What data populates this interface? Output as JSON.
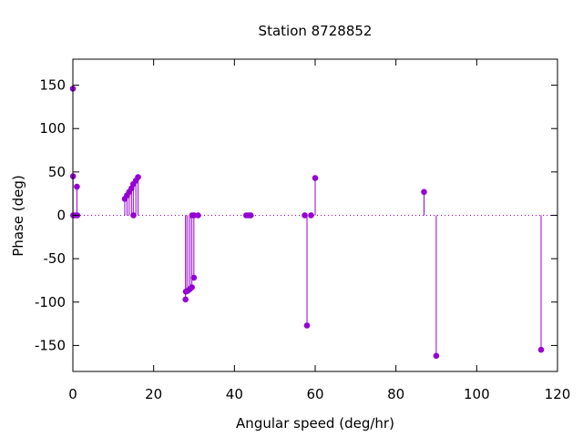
{
  "chart_data": {
    "type": "scatter",
    "style": "impulses",
    "title": "Station 8728852",
    "xlabel": "Angular speed (deg/hr)",
    "ylabel": "Phase (deg)",
    "xlim": [
      0,
      120
    ],
    "ylim": [
      -180,
      180
    ],
    "xticks": [
      0,
      20,
      40,
      60,
      80,
      100,
      120
    ],
    "yticks": [
      -150,
      -100,
      -50,
      0,
      50,
      100,
      150
    ],
    "grid": false,
    "zero_line": true,
    "color": "#9400d3",
    "points": [
      {
        "x": 0.0,
        "y": 146
      },
      {
        "x": 0.04,
        "y": 45
      },
      {
        "x": 0.08,
        "y": 0
      },
      {
        "x": 0.5,
        "y": 0
      },
      {
        "x": 1.0,
        "y": 33
      },
      {
        "x": 1.1,
        "y": 0
      },
      {
        "x": 12.85,
        "y": 19
      },
      {
        "x": 13.4,
        "y": 23
      },
      {
        "x": 13.94,
        "y": 27
      },
      {
        "x": 14.5,
        "y": 31
      },
      {
        "x": 14.96,
        "y": 36
      },
      {
        "x": 15.0,
        "y": 0
      },
      {
        "x": 15.6,
        "y": 40
      },
      {
        "x": 16.14,
        "y": 44
      },
      {
        "x": 27.9,
        "y": -97
      },
      {
        "x": 27.97,
        "y": -88
      },
      {
        "x": 28.44,
        "y": -87
      },
      {
        "x": 28.98,
        "y": -85
      },
      {
        "x": 29.46,
        "y": -83
      },
      {
        "x": 29.53,
        "y": 0
      },
      {
        "x": 29.96,
        "y": -72
      },
      {
        "x": 30.0,
        "y": 0
      },
      {
        "x": 31.0,
        "y": 0
      },
      {
        "x": 42.93,
        "y": 0
      },
      {
        "x": 43.48,
        "y": 0
      },
      {
        "x": 44.03,
        "y": 0
      },
      {
        "x": 57.42,
        "y": 0
      },
      {
        "x": 57.97,
        "y": -127
      },
      {
        "x": 58.98,
        "y": 0
      },
      {
        "x": 60.0,
        "y": 43
      },
      {
        "x": 86.95,
        "y": 27
      },
      {
        "x": 89.98,
        "y": -162
      },
      {
        "x": 115.94,
        "y": -155
      }
    ]
  }
}
